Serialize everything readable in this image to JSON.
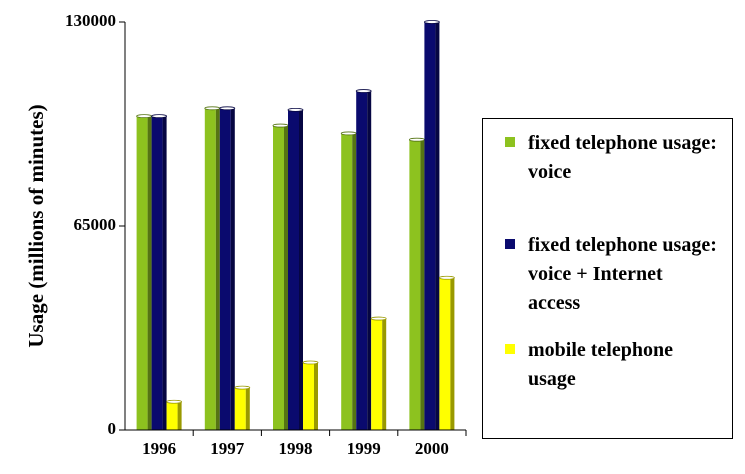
{
  "chart_data": {
    "type": "bar",
    "ylabel": "Usage (millions of minutes)",
    "categories": [
      "1996",
      "1997",
      "1998",
      "1999",
      "2000"
    ],
    "series": [
      {
        "name": "fixed telephone usage: voice",
        "color": "#8dc21f",
        "values": [
          100000,
          102500,
          97000,
          94500,
          92500
        ]
      },
      {
        "name": "fixed telephone usage: voice + Internet access",
        "color": "#0a0a6e",
        "values": [
          100000,
          102500,
          102000,
          108000,
          130000
        ]
      },
      {
        "name": "mobile telephone usage",
        "color": "#ffff00",
        "values": [
          9000,
          13500,
          21500,
          35500,
          48500
        ]
      }
    ],
    "ylim": [
      0,
      130000
    ],
    "yticks": [
      0,
      65000,
      130000
    ],
    "legend": "right"
  }
}
